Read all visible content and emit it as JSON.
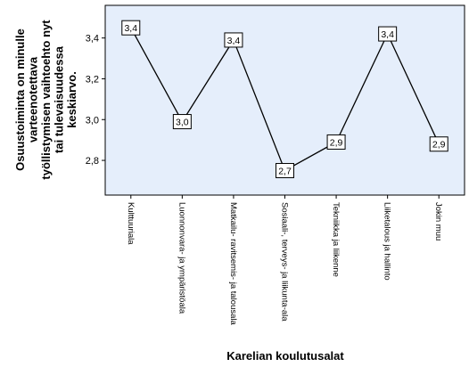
{
  "chart_data": {
    "type": "line",
    "categories": [
      "Kulttuuriala",
      "Luonnonvara- ja ympäristöala",
      "Matkailu- ravitsemis- ja talousala",
      "Sosiaali-, terveys- ja liikunta-ala",
      "Tekniikka ja liikenne",
      "Liiketalous ja hallinto",
      "Jokin muu"
    ],
    "values": [
      3.45,
      2.99,
      3.39,
      2.75,
      2.89,
      3.42,
      2.88
    ],
    "data_labels": [
      "3,4",
      "3,0",
      "3,4",
      "2,7",
      "2,9",
      "3,4",
      "2,9"
    ],
    "xlabel": "Karelian koulutusalat",
    "ylabel_lines": [
      "Osuustoiminta on minulle",
      "varteenotettava",
      "työllistymisen vaihtoehto nyt",
      "tai tulevaisuudessa",
      "keskiarvo."
    ],
    "y_ticks": [
      "2,8",
      "3,0",
      "3,2",
      "3,4"
    ],
    "y_tick_values": [
      2.8,
      3.0,
      3.2,
      3.4
    ],
    "ylim": [
      2.63,
      3.56
    ],
    "grid": false,
    "colors": {
      "plot_background": "#e5eefb",
      "line": "#000000",
      "frame": "#000000"
    }
  }
}
